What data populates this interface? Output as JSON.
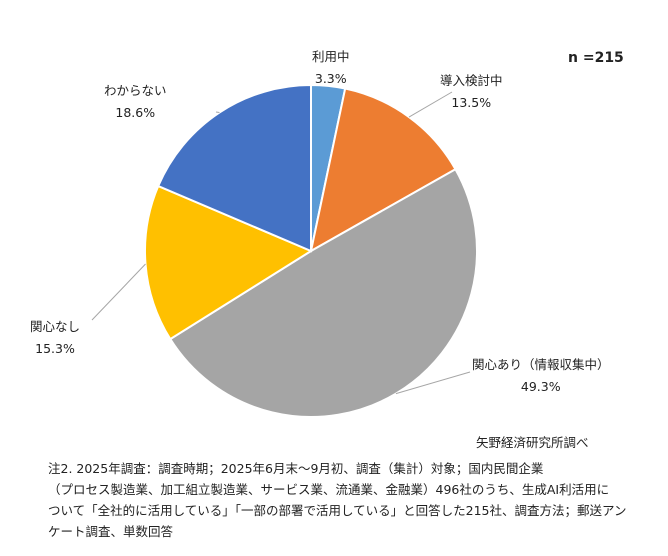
{
  "chart_data": {
    "type": "pie",
    "categories": [
      "利用中",
      "導入検討中",
      "関心あり（情報収集中）",
      "関心なし",
      "わからない"
    ],
    "values": [
      3.3,
      13.5,
      49.3,
      15.3,
      18.6
    ],
    "value_labels": [
      "3.3%",
      "13.5%",
      "49.3%",
      "15.3%",
      "18.6%"
    ],
    "colors": [
      "#5B9BD5",
      "#ED7D31",
      "#A5A5A5",
      "#FFC000",
      "#4472C4"
    ],
    "start_angle": "12 o'clock, clockwise",
    "legend": "none (data labels with leader lines)"
  },
  "sample_size": "n =215",
  "source": "矢野経済研究所調べ",
  "note_lines": [
    "注2. 2025年調査：調査時期；2025年6月末～9月初、調査（集計）対象；国内民間企業",
    "（プロセス製造業、加工組立製造業、サービス業、流通業、金融業）496社のうち、生成AI利活用に",
    "ついて「全社的に活用している」「一部の部署で活用している」と回答した215社、調査方法；郵送アン",
    "ケート調査、単数回答"
  ]
}
